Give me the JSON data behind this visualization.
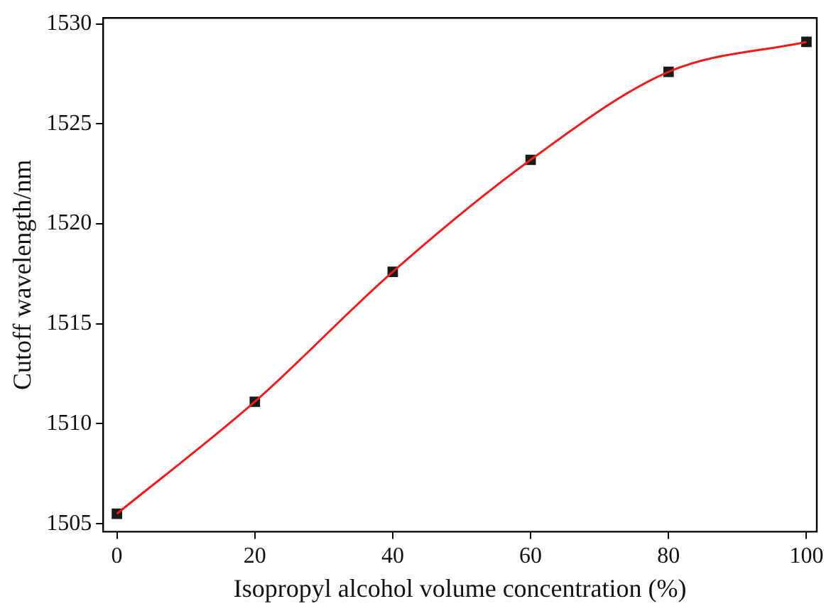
{
  "chart_data": {
    "type": "scatter",
    "xlabel": "Isopropyl alcohol volume concentration (%)",
    "ylabel": "Cutoff wavelength/nm",
    "xlim": [
      -2,
      101.5
    ],
    "xticks": [
      0,
      20,
      40,
      60,
      80,
      100
    ],
    "ylim": [
      1504.6,
      1530.3
    ],
    "yticks": [
      1505,
      1510,
      1515,
      1520,
      1525,
      1530
    ],
    "grid": false,
    "legend": false,
    "series": [
      {
        "type": "line",
        "x": [
          0,
          20,
          40,
          60,
          80,
          100
        ],
        "values": [
          1505.5,
          1511.1,
          1517.6,
          1523.2,
          1527.6,
          1529.1
        ],
        "color": "#ee1c1c",
        "marker": "none",
        "line_style": "solid"
      },
      {
        "type": "scatter",
        "x": [
          0,
          20,
          40,
          60,
          80,
          100
        ],
        "values": [
          1505.5,
          1511.1,
          1517.6,
          1523.2,
          1527.6,
          1529.1
        ],
        "color": "#1a1a1a",
        "marker": "square"
      }
    ]
  }
}
